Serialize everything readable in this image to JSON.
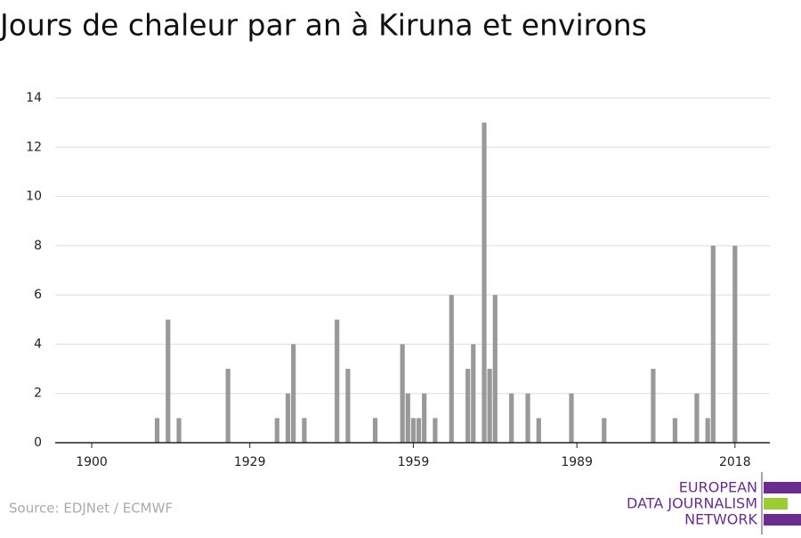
{
  "chart_data": {
    "type": "bar",
    "title": "Jours de chaleur par an à Kiruna et environs",
    "source": "Source: EDJNet / ECMWF",
    "logo": [
      "EUROPEAN",
      "DATA JOURNALISM",
      "NETWORK"
    ],
    "color": "#999999",
    "x": [
      1912,
      1914,
      1916,
      1925,
      1934,
      1936,
      1937,
      1939,
      1945,
      1947,
      1952,
      1957,
      1958,
      1959,
      1960,
      1961,
      1963,
      1966,
      1969,
      1970,
      1972,
      1973,
      1974,
      1977,
      1980,
      1982,
      1988,
      1994,
      2003,
      2007,
      2011,
      2013,
      2014,
      2018
    ],
    "values": [
      1,
      5,
      1,
      3,
      1,
      2,
      4,
      1,
      5,
      3,
      1,
      4,
      2,
      1,
      1,
      2,
      1,
      6,
      3,
      4,
      13,
      3,
      6,
      2,
      2,
      1,
      2,
      1,
      3,
      1,
      2,
      1,
      8,
      8
    ],
    "xlim": [
      1893.3,
      2024.4
    ],
    "xticks": [
      1900,
      1929,
      1959,
      1989,
      2018
    ],
    "ylim": [
      0,
      14
    ],
    "yticks": [
      0,
      2,
      4,
      6,
      8,
      10,
      12,
      14
    ],
    "grid": true
  }
}
